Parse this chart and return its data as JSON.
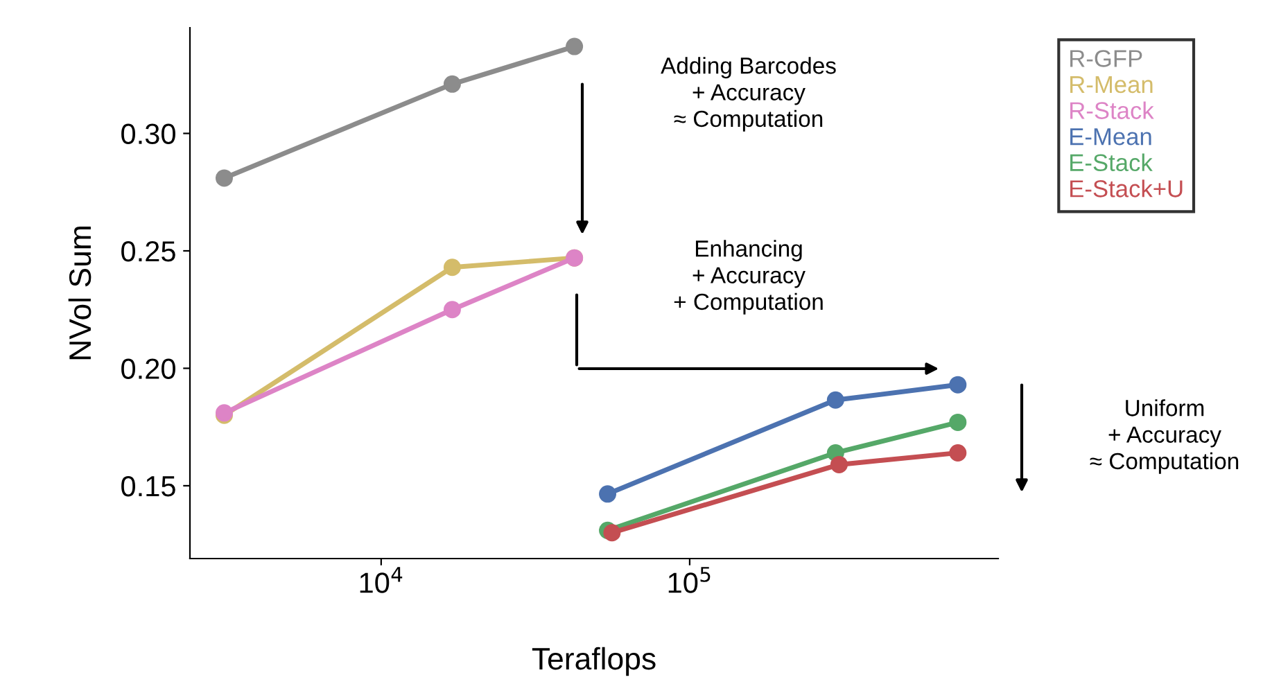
{
  "chart_data": {
    "type": "line",
    "xlabel": "Teraflops",
    "ylabel": "NVol Sum",
    "log": "x",
    "xlim": [
      2400,
      1000000
    ],
    "xticks": [
      {
        "value": 10000,
        "label": "10$^{4}$"
      },
      {
        "value": 100000,
        "label": "10$^{5}$"
      }
    ],
    "ylim": [
      0.119,
      0.345
    ],
    "yticks": [
      0.15,
      {
        "value": 0.2,
        "label": "0.20"
      },
      0.25,
      {
        "value": 0.3,
        "label": "0.30"
      }
    ],
    "grid": false,
    "legend": "top right",
    "marker": "circle",
    "line_style": "solid",
    "series": [
      {
        "name": "R-GFP",
        "color": "#8c8c8c",
        "x": [
          3100,
          17000,
          42300
        ],
        "values": [
          0.281,
          0.321,
          0.337
        ]
      },
      {
        "name": "R-Mean",
        "color": "#d4bc6a",
        "x": [
          3100,
          17000,
          42300
        ],
        "values": [
          0.18,
          0.243,
          0.247
        ]
      },
      {
        "name": "R-Stack",
        "color": "#dd84c6",
        "x": [
          3100,
          17000,
          42300
        ],
        "values": [
          0.181,
          0.225,
          0.247
        ]
      },
      {
        "name": "E-Mean",
        "color": "#4c72b0",
        "x": [
          54200,
          297000,
          740000
        ],
        "values": [
          0.1465,
          0.1865,
          0.193
        ]
      },
      {
        "name": "E-Stack",
        "color": "#55a868",
        "x": [
          54200,
          297000,
          740000
        ],
        "values": [
          0.131,
          0.164,
          0.177
        ]
      },
      {
        "name": "E-Stack+U",
        "color": "#c44e52",
        "x": [
          56000,
          305000,
          740000
        ],
        "values": [
          0.13,
          0.159,
          0.164
        ]
      }
    ],
    "annotations": [
      "Adding Barcodes\n+ Accuracy\n≈ Computation",
      "Enhancing\n+ Accuracy\n+ Computation",
      "Uniform\n+ Accuracy\n≈ Computation"
    ]
  }
}
